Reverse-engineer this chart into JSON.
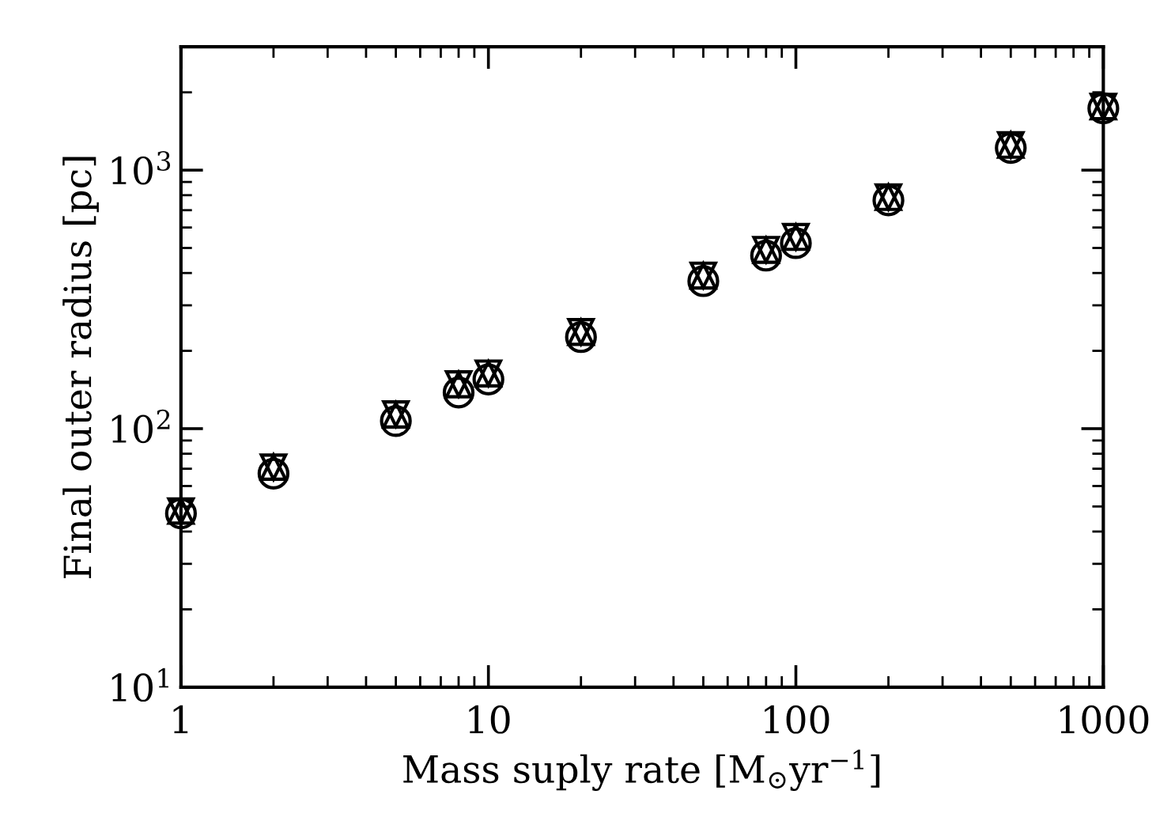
{
  "chart_data": {
    "type": "scatter",
    "xlabel": "Mass suply rate [M$_{⊙}$yr$^{−1}$]",
    "ylabel": "Final outer radius [pc]",
    "log": "xy",
    "grid": false,
    "xlim": [
      1,
      1000
    ],
    "xticks": [
      1,
      10,
      100,
      1000
    ],
    "ylim": [
      10,
      3000
    ],
    "yticks": [
      {
        "value": 10,
        "label": "10$^{1}$"
      },
      {
        "value": 100,
        "label": "10$^{2}$"
      },
      {
        "value": 1000,
        "label": "10$^{3}$"
      }
    ],
    "x": [
      1,
      2,
      5,
      8,
      10,
      20,
      50,
      80,
      100,
      200,
      500,
      1000
    ],
    "series": [
      {
        "color": "#000000",
        "marker": "circle",
        "values": [
          47,
          67,
          107,
          138,
          155,
          226,
          372,
          467,
          522,
          764,
          1219,
          1734
        ]
      },
      {
        "color": "#000000",
        "marker": "triangle",
        "values": [
          48,
          71,
          113,
          148,
          163,
          236,
          390,
          490,
          550,
          785,
          1250,
          1760
        ]
      },
      {
        "color": "#000000",
        "marker": "triangle down",
        "values": [
          48,
          71,
          114,
          149,
          164,
          237,
          392,
          493,
          553,
          787,
          1252,
          1762
        ]
      }
    ]
  }
}
